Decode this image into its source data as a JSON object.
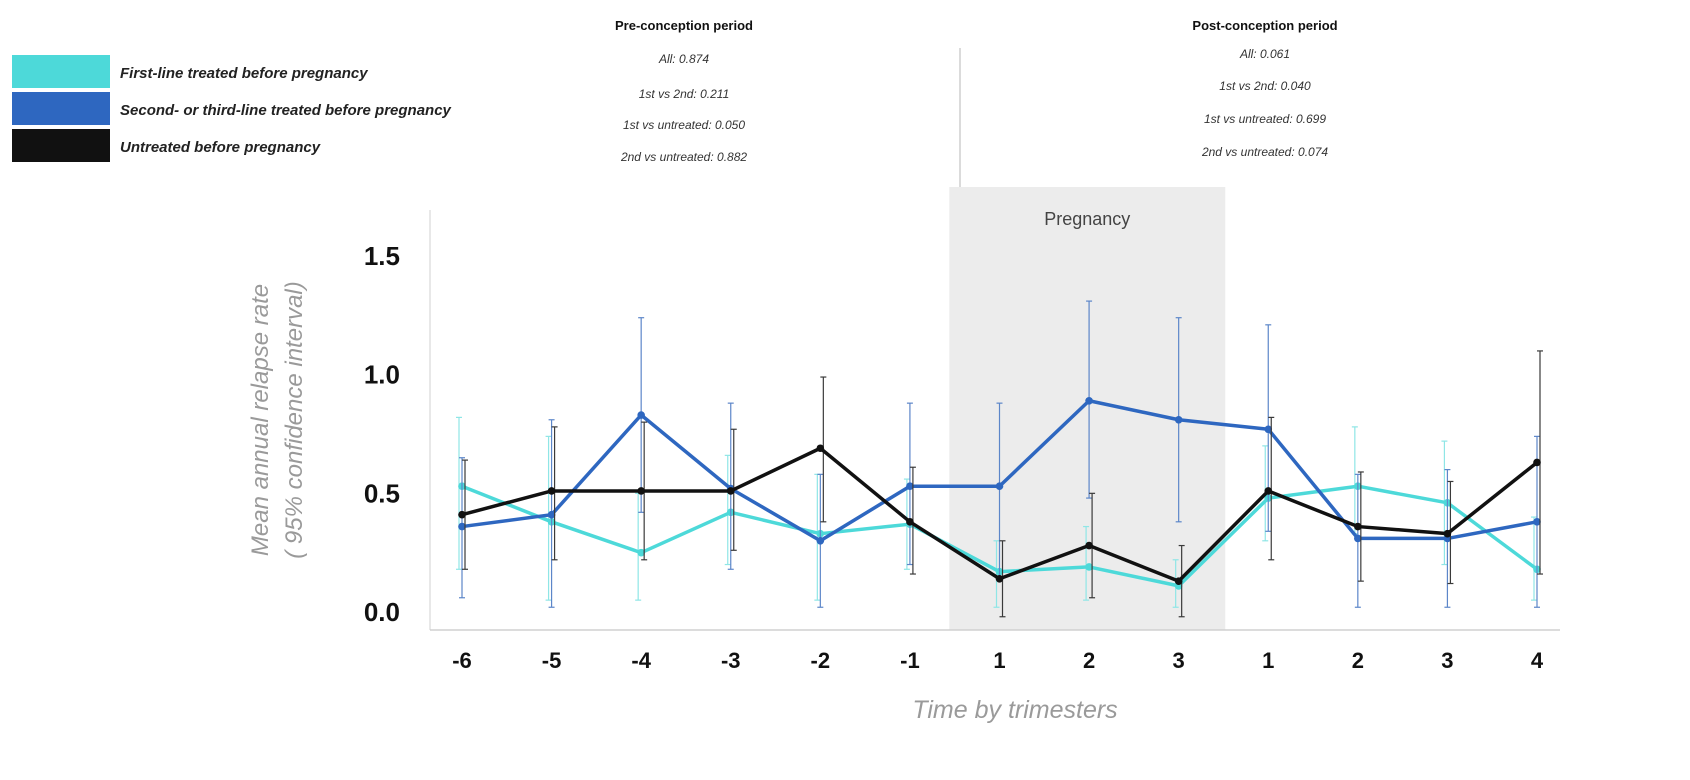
{
  "chart_data": {
    "type": "line",
    "xlabel": "Time by trimesters",
    "ylabel_line1": "Mean annual relapse rate",
    "ylabel_line2": "( 95% confidence interval)",
    "ylim": [
      0,
      1.7
    ],
    "yticks": [
      "0.0",
      "0.5",
      "1.0",
      "1.5"
    ],
    "ytick_values": [
      0,
      0.5,
      1.0,
      1.5
    ],
    "categories": [
      "-6",
      "-5",
      "-4",
      "-3",
      "-2",
      "-1",
      "1",
      "2",
      "3",
      "1",
      "2",
      "3",
      "4"
    ],
    "shaded_region": {
      "label": "Pregnancy",
      "from_index": 6,
      "to_index": 8
    },
    "series": [
      {
        "name": "First-line treated before pregnancy",
        "color": "#4dd9d9",
        "values": [
          0.53,
          0.38,
          0.25,
          0.42,
          0.33,
          0.37,
          0.17,
          0.19,
          0.11,
          0.48,
          0.53,
          0.46,
          0.18
        ],
        "ci_low": [
          0.18,
          0.05,
          0.05,
          0.2,
          0.05,
          0.18,
          0.02,
          0.05,
          0.02,
          0.3,
          0.33,
          0.2,
          0.05
        ],
        "ci_high": [
          0.82,
          0.74,
          0.5,
          0.66,
          0.58,
          0.56,
          0.3,
          0.36,
          0.22,
          0.7,
          0.78,
          0.72,
          0.4
        ]
      },
      {
        "name": "Second- or third-line treated before pregnancy",
        "color": "#2e67c0",
        "values": [
          0.36,
          0.41,
          0.83,
          0.52,
          0.3,
          0.53,
          0.53,
          0.89,
          0.81,
          0.77,
          0.31,
          0.31,
          0.38
        ],
        "ci_low": [
          0.06,
          0.02,
          0.42,
          0.18,
          0.02,
          0.2,
          0.15,
          0.48,
          0.38,
          0.34,
          0.02,
          0.02,
          0.02
        ],
        "ci_high": [
          0.65,
          0.81,
          1.24,
          0.88,
          0.58,
          0.88,
          0.88,
          1.31,
          1.24,
          1.21,
          0.58,
          0.6,
          0.74
        ]
      },
      {
        "name": "Untreated before pregnancy",
        "color": "#111111",
        "values": [
          0.41,
          0.51,
          0.51,
          0.51,
          0.69,
          0.38,
          0.14,
          0.28,
          0.13,
          0.51,
          0.36,
          0.33,
          0.63
        ],
        "ci_low": [
          0.18,
          0.22,
          0.22,
          0.26,
          0.38,
          0.16,
          -0.02,
          0.06,
          -0.02,
          0.22,
          0.13,
          0.12,
          0.16
        ],
        "ci_high": [
          0.64,
          0.78,
          0.8,
          0.77,
          0.99,
          0.61,
          0.3,
          0.5,
          0.28,
          0.82,
          0.59,
          0.55,
          1.1
        ]
      }
    ]
  },
  "legend": [
    {
      "label": "First-line treated before pregnancy",
      "color": "#4dd9d9"
    },
    {
      "label": "Second- or third-line treated before pregnancy",
      "color": "#2e67c0"
    },
    {
      "label": "Untreated before pregnancy",
      "color": "#111111"
    }
  ],
  "annotations": {
    "pre": {
      "title": "Pre-conception period",
      "lines": [
        "All: 0.874",
        "1st vs 2nd: 0.211",
        "1st vs untreated: 0.050",
        "2nd vs untreated: 0.882"
      ]
    },
    "post": {
      "title": "Post-conception period",
      "lines": [
        "All: 0.061",
        "1st vs 2nd: 0.040",
        "1st vs untreated: 0.699",
        "2nd vs untreated: 0.074"
      ]
    }
  }
}
